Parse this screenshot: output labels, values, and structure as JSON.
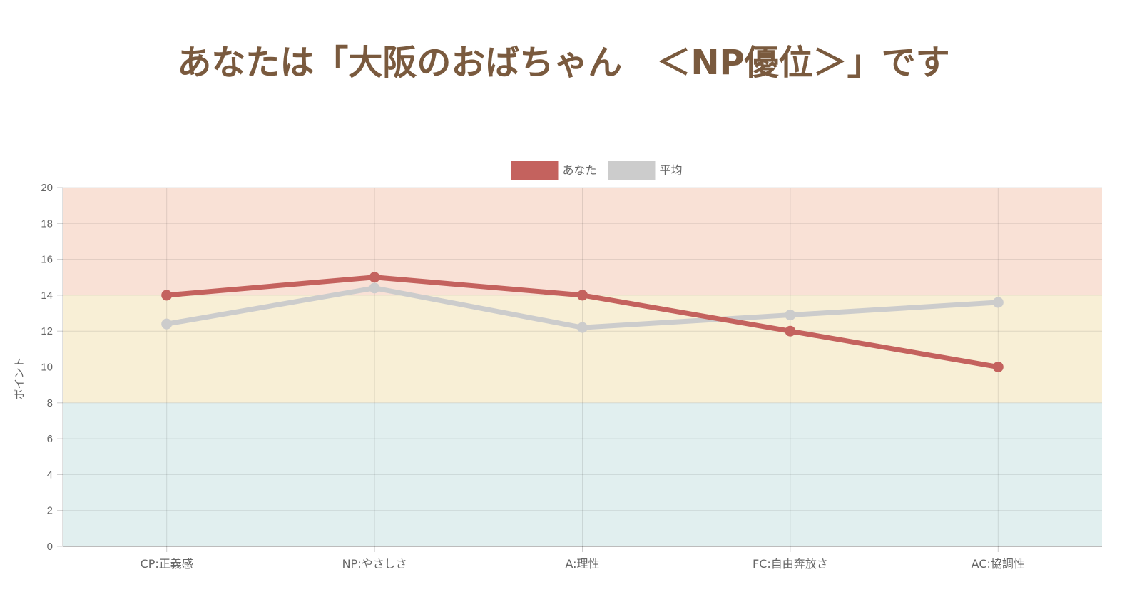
{
  "page": {
    "title": "あなたは「大阪のおばちゃん　＜NP優位＞」です"
  },
  "chart_data": {
    "type": "line",
    "categories": [
      "CP:正義感",
      "NP:やさしさ",
      "A:理性",
      "FC:自由奔放さ",
      "AC:協調性"
    ],
    "series": [
      {
        "name": "あなた",
        "color": "#c4625e",
        "values": [
          14,
          15,
          14,
          12,
          10
        ]
      },
      {
        "name": "平均",
        "color": "#cccccc",
        "values": [
          12.4,
          14.4,
          12.2,
          12.9,
          13.6
        ]
      }
    ],
    "ylabel": "ポイント",
    "ylim": [
      0,
      20
    ],
    "yticks": [
      0,
      2,
      4,
      6,
      8,
      10,
      12,
      14,
      16,
      18,
      20
    ],
    "bands": [
      {
        "from": 14,
        "to": 20,
        "color": "#f9e1d6"
      },
      {
        "from": 8,
        "to": 14,
        "color": "#f8efd6"
      },
      {
        "from": 0,
        "to": 8,
        "color": "#e1efef"
      }
    ],
    "grid": true,
    "legend": "top-center"
  }
}
